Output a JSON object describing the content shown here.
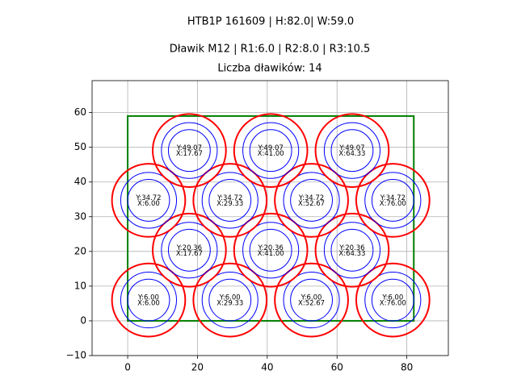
{
  "chart_data": {
    "type": "circle-layout",
    "suptitle": "HTB1P 161609 | H:82.0| W:59.0",
    "title": "Dławik M12 | R1:6.0 | R2:8.0 | R3:10.5",
    "subtitle": "Liczba dławików: 14",
    "x": [
      6,
      29.33,
      52.67,
      76,
      17.67,
      41,
      64.33,
      6,
      29.33,
      52.67,
      76,
      17.67,
      41,
      64.33
    ],
    "y": [
      6,
      6,
      6,
      6,
      20.36,
      20.36,
      20.36,
      34.72,
      34.72,
      34.72,
      34.72,
      49.07,
      49.07,
      49.07
    ],
    "x_labels": [
      "X:6.00",
      "X:29.33",
      "X:52.67",
      "X:76.00",
      "X:17.67",
      "X:41.00",
      "X:64.33",
      "X:6.00",
      "X:29.33",
      "X:52.67",
      "X:76.00",
      "X:17.67",
      "X:41.00",
      "X:64.33"
    ],
    "y_labels": [
      "Y:6.00",
      "Y:6.00",
      "Y:6.00",
      "Y:6.00",
      "Y:20.36",
      "Y:20.36",
      "Y:20.36",
      "Y:34.72",
      "Y:34.72",
      "Y:34.72",
      "Y:34.72",
      "Y:49.07",
      "Y:49.07",
      "Y:49.07"
    ],
    "radii": [
      6,
      8,
      10.5
    ],
    "radius_colors": [
      "#0000ff",
      "#0000ff",
      "#ff0000"
    ],
    "rectangle": {
      "x": [
        0,
        82
      ],
      "y": [
        0,
        59
      ],
      "color": "#008000"
    },
    "xlim": [
      -10.2,
      91.9
    ],
    "ylim": [
      -10,
      69.2
    ],
    "xticks": [
      0,
      20,
      40,
      60,
      80
    ],
    "yticks": [
      {
        "value": -10,
        "label": "−10"
      },
      0,
      10,
      20,
      30,
      40,
      50,
      60
    ],
    "grid": true
  }
}
